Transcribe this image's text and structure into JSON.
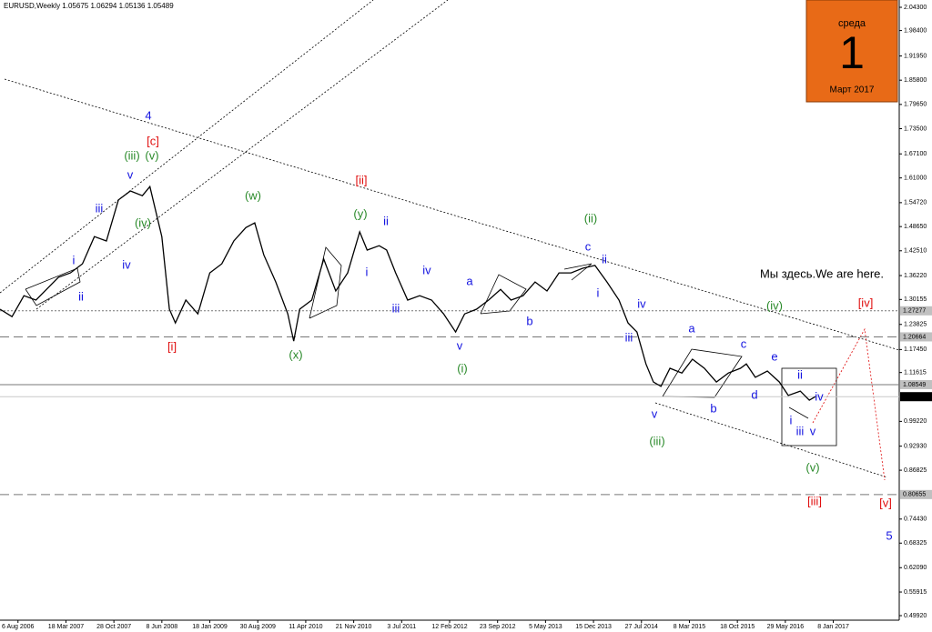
{
  "chart_data": {
    "type": "line",
    "title": "EURUSD,Weekly  1.05675 1.06294 1.05136 1.05489",
    "xlim": [
      -12,
      588
    ],
    "ylim": [
      0.4877,
      2.0615
    ],
    "xticks": [
      {
        "value": 0,
        "label": "6 Aug 2006"
      },
      {
        "value": 32,
        "label": "18 Mar 2007"
      },
      {
        "value": 64,
        "label": "28 Oct 2007"
      },
      {
        "value": 96,
        "label": "8 Jun 2008"
      },
      {
        "value": 128,
        "label": "18 Jan 2009"
      },
      {
        "value": 160,
        "label": "30 Aug 2009"
      },
      {
        "value": 192,
        "label": "11 Apr 2010"
      },
      {
        "value": 224,
        "label": "21 Nov 2010"
      },
      {
        "value": 256,
        "label": "3 Jul 2011"
      },
      {
        "value": 288,
        "label": "12 Feb 2012"
      },
      {
        "value": 320,
        "label": "23 Sep 2012"
      },
      {
        "value": 352,
        "label": "5 May 2013"
      },
      {
        "value": 384,
        "label": "15 Dec 2013"
      },
      {
        "value": 416,
        "label": "27 Jul 2014"
      },
      {
        "value": 448,
        "label": "8 Mar 2015"
      },
      {
        "value": 480,
        "label": "18 Oct 2015"
      },
      {
        "value": 512,
        "label": "29 May 2016"
      },
      {
        "value": 544,
        "label": "8 Jan 2017"
      }
    ],
    "yticks": [
      {
        "value": 2.043,
        "label": "2.04300"
      },
      {
        "value": 1.984,
        "label": "1.98400"
      },
      {
        "value": 1.9195,
        "label": "1.91950"
      },
      {
        "value": 1.858,
        "label": "1.85800"
      },
      {
        "value": 1.7965,
        "label": "1.79650"
      },
      {
        "value": 1.735,
        "label": "1.73500"
      },
      {
        "value": 1.671,
        "label": "1.67100"
      },
      {
        "value": 1.61,
        "label": "1.61000"
      },
      {
        "value": 1.5472,
        "label": "1.54720"
      },
      {
        "value": 1.4865,
        "label": "1.48650"
      },
      {
        "value": 1.4251,
        "label": "1.42510"
      },
      {
        "value": 1.3622,
        "label": "1.36220"
      },
      1.30155,
      1.23825,
      {
        "value": 1.1745,
        "label": "1.17450"
      },
      1.11615,
      {
        "value": 0.9922,
        "label": "0.99220"
      },
      {
        "value": 0.9293,
        "label": "0.92930"
      },
      0.86825,
      {
        "value": 0.7443,
        "label": "0.74430"
      },
      0.68325,
      {
        "value": 0.6209,
        "label": "0.62090"
      },
      0.55915,
      {
        "value": 0.4992,
        "label": "0.49920"
      }
    ],
    "series": [
      {
        "color": "#000000",
        "x": [
          -12,
          -4,
          4,
          12,
          19,
          27,
          35,
          43,
          51,
          59,
          67,
          75,
          83,
          88,
          96,
          101,
          105,
          112,
          120,
          128,
          136,
          144,
          152,
          158,
          164,
          172,
          180,
          184,
          188,
          196,
          204,
          212,
          220,
          228,
          233,
          241,
          246,
          252,
          260,
          268,
          276,
          284,
          292,
          298,
          306,
          314,
          322,
          329,
          337,
          345,
          353,
          361,
          369,
          377,
          385,
          393,
          401,
          407,
          413,
          419,
          424,
          429,
          435,
          443,
          450,
          458,
          466,
          474,
          482,
          486,
          492,
          500,
          508,
          514,
          522,
          528,
          532
        ],
        "values": [
          1.277,
          1.258,
          1.311,
          1.3,
          1.327,
          1.358,
          1.369,
          1.392,
          1.461,
          1.45,
          1.554,
          1.577,
          1.565,
          1.588,
          1.461,
          1.277,
          1.242,
          1.3,
          1.265,
          1.369,
          1.392,
          1.45,
          1.484,
          1.496,
          1.415,
          1.346,
          1.265,
          1.196,
          1.277,
          1.3,
          1.404,
          1.323,
          1.369,
          1.473,
          1.427,
          1.438,
          1.427,
          1.369,
          1.3,
          1.311,
          1.3,
          1.265,
          1.219,
          1.265,
          1.277,
          1.3,
          1.327,
          1.3,
          1.311,
          1.346,
          1.323,
          1.369,
          1.369,
          1.381,
          1.388,
          1.346,
          1.3,
          1.242,
          1.219,
          1.138,
          1.092,
          1.081,
          1.127,
          1.115,
          1.15,
          1.127,
          1.092,
          1.115,
          1.127,
          1.138,
          1.104,
          1.12,
          1.092,
          1.058,
          1.069,
          1.046,
          1.055
        ]
      }
    ],
    "levels": [
      {
        "value": 1.27277,
        "style": "dotted"
      },
      {
        "value": 1.20664,
        "style": "dashed"
      },
      {
        "value": 1.08549,
        "style": "solid"
      },
      {
        "value": 1.05489,
        "style": "current"
      },
      {
        "value": 0.80655,
        "style": "dashed"
      }
    ],
    "annotations": [
      {
        "text": "4",
        "color": "#1414e0"
      },
      {
        "text": "[c]",
        "color": "#e01010"
      },
      {
        "text": "(iii)",
        "color": "#2a8a2a"
      },
      {
        "text": "(v)",
        "color": "#2a8a2a"
      },
      {
        "text": "v",
        "color": "#1414e0"
      },
      {
        "text": "iii",
        "color": "#1414e0"
      },
      {
        "text": "(iv)",
        "color": "#2a8a2a"
      },
      {
        "text": "iv",
        "color": "#1414e0"
      },
      {
        "text": "i",
        "color": "#1414e0"
      },
      {
        "text": "ii",
        "color": "#1414e0"
      },
      {
        "text": "[i]",
        "color": "#e01010"
      },
      {
        "text": "(w)",
        "color": "#2a8a2a"
      },
      {
        "text": "(x)",
        "color": "#2a8a2a"
      },
      {
        "text": "(y)",
        "color": "#2a8a2a"
      },
      {
        "text": "[ii]",
        "color": "#e01010"
      },
      {
        "text": "ii",
        "color": "#1414e0"
      },
      {
        "text": "i",
        "color": "#1414e0"
      },
      {
        "text": "iii",
        "color": "#1414e0"
      },
      {
        "text": "iv",
        "color": "#1414e0"
      },
      {
        "text": "v",
        "color": "#1414e0"
      },
      {
        "text": "(i)",
        "color": "#2a8a2a"
      },
      {
        "text": "a",
        "color": "#1414e0"
      },
      {
        "text": "b",
        "color": "#1414e0"
      },
      {
        "text": "c",
        "color": "#1414e0"
      },
      {
        "text": "ii",
        "color": "#1414e0"
      },
      {
        "text": "i",
        "color": "#1414e0"
      },
      {
        "text": "(ii)",
        "color": "#2a8a2a"
      },
      {
        "text": "iv",
        "color": "#1414e0"
      },
      {
        "text": "iii",
        "color": "#1414e0"
      },
      {
        "text": "v",
        "color": "#1414e0"
      },
      {
        "text": "(iii)",
        "color": "#2a8a2a"
      },
      {
        "text": "a",
        "color": "#1414e0"
      },
      {
        "text": "b",
        "color": "#1414e0"
      },
      {
        "text": "c",
        "color": "#1414e0"
      },
      {
        "text": "d",
        "color": "#1414e0"
      },
      {
        "text": "e",
        "color": "#1414e0"
      },
      {
        "text": "ii",
        "color": "#1414e0"
      },
      {
        "text": "i",
        "color": "#1414e0"
      },
      {
        "text": "iv",
        "color": "#1414e0"
      },
      {
        "text": "iii",
        "color": "#1414e0"
      },
      {
        "text": "v",
        "color": "#1414e0"
      },
      {
        "text": "(v)",
        "color": "#2a8a2a"
      },
      {
        "text": "(iv)",
        "color": "#2a8a2a"
      },
      {
        "text": "[iv]",
        "color": "#e01010"
      },
      {
        "text": "[iii]",
        "color": "#e01010"
      },
      {
        "text": "[v]",
        "color": "#e01010"
      },
      {
        "text": "5",
        "color": "#1414e0"
      },
      {
        "text": "Мы здесь.We are here.",
        "color": "#000000"
      }
    ],
    "calendar": {
      "weekday": "среда",
      "day": 1,
      "month": "Март 2017"
    }
  }
}
